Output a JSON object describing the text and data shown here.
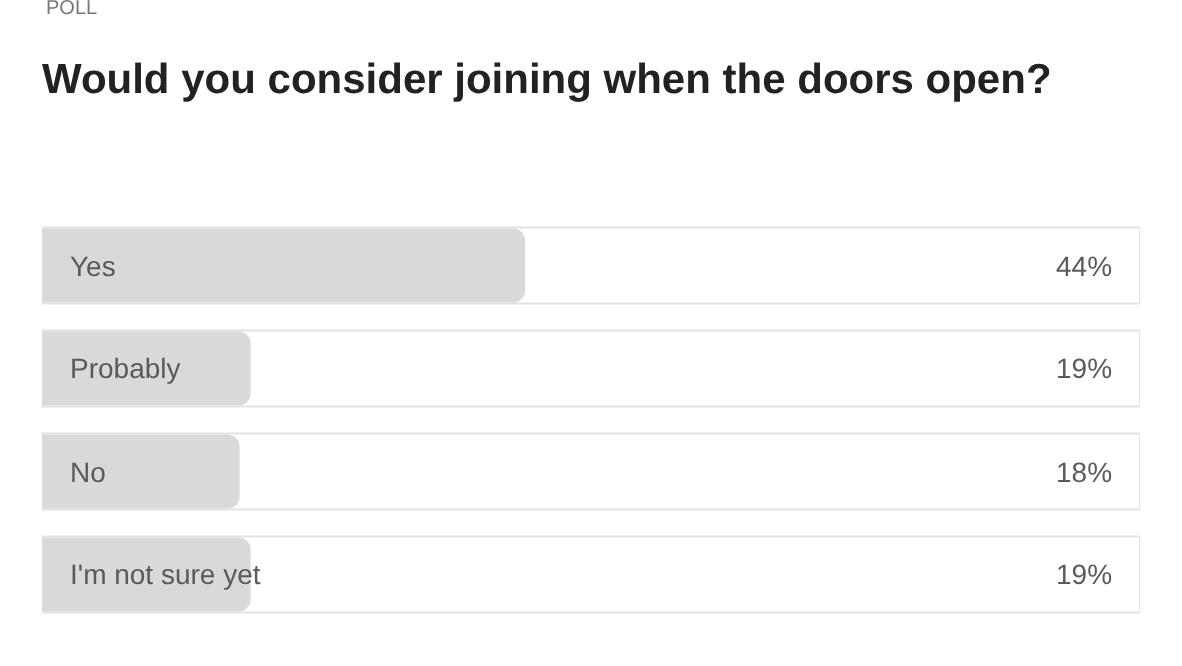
{
  "chart_data": {
    "type": "bar",
    "orientation": "horizontal",
    "title": "Would you consider joining when the doors open?",
    "annotations": [
      "POLL"
    ],
    "categories": [
      "Yes",
      "Probably",
      "No",
      "I'm not sure yet"
    ],
    "values": [
      44,
      19,
      18,
      19
    ],
    "color": "#d9d9d9",
    "value_labels": [
      "44%",
      "19%",
      "18%",
      "19%"
    ]
  }
}
